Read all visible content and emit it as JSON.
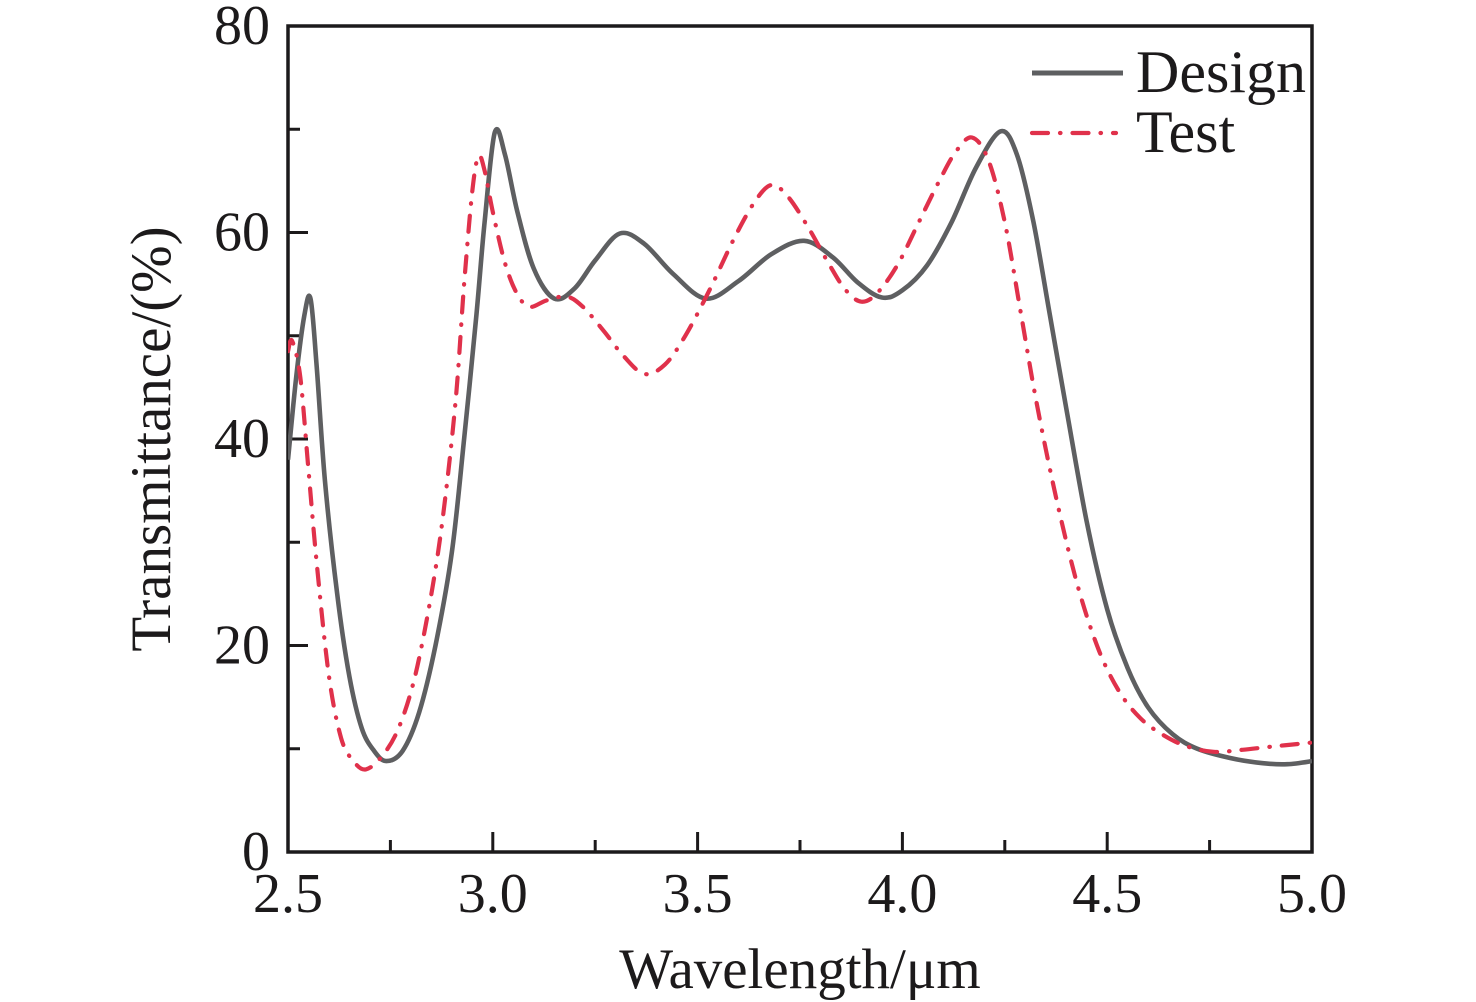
{
  "chart_data": {
    "type": "line",
    "title": "",
    "xlabel": "Wavelength/μm",
    "ylabel": "Transmittance/(%)",
    "xlim": [
      2.5,
      5.0
    ],
    "ylim": [
      0,
      80
    ],
    "grid": false,
    "axis_color": "#1c1a1b",
    "xticks": {
      "major": [
        2.5,
        3.0,
        3.5,
        4.0,
        4.5,
        5.0
      ],
      "minor": [
        2.75,
        3.25,
        3.75,
        4.25,
        4.75
      ],
      "labels": [
        "2.5",
        "3.0",
        "3.5",
        "4.0",
        "4.5",
        "5.0"
      ]
    },
    "yticks": {
      "major": [
        0,
        20,
        40,
        60,
        80
      ],
      "minor": [
        10,
        30,
        50,
        70
      ],
      "labels": [
        "0",
        "20",
        "40",
        "60",
        "80"
      ]
    },
    "legend": {
      "position": "top-right-inside"
    },
    "series": [
      {
        "name": "Design",
        "color": "#5e5f61",
        "style": "solid",
        "points": [
          [
            2.5,
            38.0
          ],
          [
            2.52,
            46.0
          ],
          [
            2.54,
            52.0
          ],
          [
            2.555,
            53.6
          ],
          [
            2.57,
            47.0
          ],
          [
            2.59,
            36.0
          ],
          [
            2.62,
            25.0
          ],
          [
            2.65,
            17.0
          ],
          [
            2.68,
            12.0
          ],
          [
            2.71,
            9.8
          ],
          [
            2.74,
            8.8
          ],
          [
            2.78,
            9.8
          ],
          [
            2.82,
            13.5
          ],
          [
            2.86,
            20.0
          ],
          [
            2.9,
            29.0
          ],
          [
            2.93,
            40.0
          ],
          [
            2.96,
            52.0
          ],
          [
            2.98,
            61.0
          ],
          [
            3.005,
            69.7
          ],
          [
            3.03,
            67.5
          ],
          [
            3.06,
            62.0
          ],
          [
            3.1,
            56.5
          ],
          [
            3.15,
            53.6
          ],
          [
            3.2,
            54.6
          ],
          [
            3.25,
            57.3
          ],
          [
            3.31,
            59.9
          ],
          [
            3.37,
            58.9
          ],
          [
            3.44,
            56.0
          ],
          [
            3.52,
            53.6
          ],
          [
            3.6,
            55.3
          ],
          [
            3.68,
            57.9
          ],
          [
            3.76,
            59.2
          ],
          [
            3.83,
            57.6
          ],
          [
            3.89,
            55.2
          ],
          [
            3.95,
            53.7
          ],
          [
            4.0,
            54.4
          ],
          [
            4.06,
            56.8
          ],
          [
            4.12,
            61.0
          ],
          [
            4.18,
            66.3
          ],
          [
            4.24,
            69.8
          ],
          [
            4.28,
            67.5
          ],
          [
            4.32,
            61.0
          ],
          [
            4.36,
            52.0
          ],
          [
            4.4,
            43.0
          ],
          [
            4.45,
            32.0
          ],
          [
            4.5,
            23.5
          ],
          [
            4.55,
            17.8
          ],
          [
            4.6,
            14.0
          ],
          [
            4.66,
            11.4
          ],
          [
            4.72,
            10.0
          ],
          [
            4.8,
            9.1
          ],
          [
            4.88,
            8.6
          ],
          [
            4.94,
            8.5
          ],
          [
            5.0,
            8.8
          ]
        ]
      },
      {
        "name": "Test",
        "color": "#e0314b",
        "style": "dash-dot",
        "points": [
          [
            2.5,
            48.5
          ],
          [
            2.51,
            49.5
          ],
          [
            2.53,
            46.0
          ],
          [
            2.55,
            37.0
          ],
          [
            2.57,
            28.0
          ],
          [
            2.6,
            17.0
          ],
          [
            2.63,
            11.0
          ],
          [
            2.66,
            8.8
          ],
          [
            2.69,
            8.0
          ],
          [
            2.73,
            9.3
          ],
          [
            2.77,
            12.0
          ],
          [
            2.81,
            17.0
          ],
          [
            2.85,
            25.0
          ],
          [
            2.88,
            33.0
          ],
          [
            2.91,
            44.0
          ],
          [
            2.93,
            55.0
          ],
          [
            2.95,
            64.0
          ],
          [
            2.965,
            67.4
          ],
          [
            2.98,
            66.0
          ],
          [
            3.0,
            62.0
          ],
          [
            3.03,
            57.0
          ],
          [
            3.06,
            54.0
          ],
          [
            3.09,
            52.8
          ],
          [
            3.13,
            53.4
          ],
          [
            3.18,
            53.8
          ],
          [
            3.22,
            52.8
          ],
          [
            3.27,
            50.5
          ],
          [
            3.32,
            48.0
          ],
          [
            3.37,
            46.3
          ],
          [
            3.42,
            47.2
          ],
          [
            3.47,
            50.0
          ],
          [
            3.53,
            54.5
          ],
          [
            3.59,
            59.5
          ],
          [
            3.64,
            63.0
          ],
          [
            3.68,
            64.6
          ],
          [
            3.72,
            63.5
          ],
          [
            3.77,
            60.5
          ],
          [
            3.82,
            57.0
          ],
          [
            3.86,
            54.5
          ],
          [
            3.9,
            53.3
          ],
          [
            3.94,
            54.2
          ],
          [
            3.99,
            57.0
          ],
          [
            4.04,
            61.0
          ],
          [
            4.09,
            65.0
          ],
          [
            4.13,
            67.8
          ],
          [
            4.17,
            69.2
          ],
          [
            4.21,
            67.0
          ],
          [
            4.25,
            61.0
          ],
          [
            4.29,
            52.0
          ],
          [
            4.33,
            43.0
          ],
          [
            4.38,
            33.5
          ],
          [
            4.43,
            25.5
          ],
          [
            4.48,
            19.5
          ],
          [
            4.53,
            15.5
          ],
          [
            4.58,
            13.0
          ],
          [
            4.63,
            11.5
          ],
          [
            4.69,
            10.3
          ],
          [
            4.76,
            9.7
          ],
          [
            4.83,
            9.9
          ],
          [
            4.9,
            10.2
          ],
          [
            4.95,
            10.4
          ],
          [
            5.0,
            10.6
          ]
        ]
      }
    ]
  }
}
